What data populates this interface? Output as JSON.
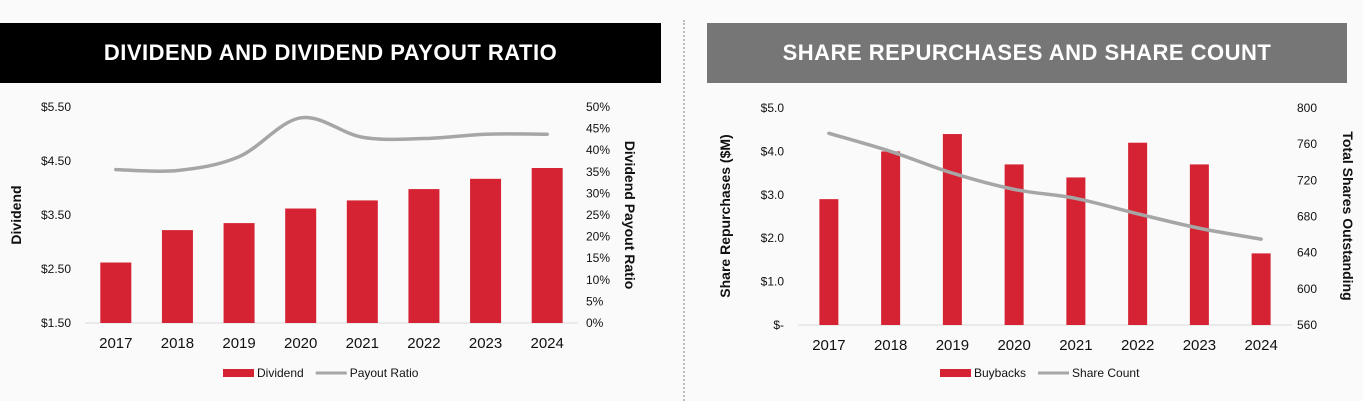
{
  "left": {
    "title": "DIVIDEND AND DIVIDEND PAYOUT RATIO",
    "chart_data": {
      "type": "bar",
      "categories": [
        "2017",
        "2018",
        "2019",
        "2020",
        "2021",
        "2022",
        "2023",
        "2024"
      ],
      "series": [
        {
          "name": "Dividend",
          "type": "bar",
          "axis": "left",
          "color": "#d62333",
          "values": [
            2.62,
            3.22,
            3.35,
            3.62,
            3.77,
            3.98,
            4.17,
            4.37
          ]
        },
        {
          "name": "Payout Ratio",
          "type": "line",
          "axis": "right",
          "color": "#a6a6a6",
          "values": [
            35.5,
            35.3,
            38.5,
            47.5,
            43.0,
            42.7,
            43.7,
            43.7
          ]
        }
      ],
      "ylabel": "Dividend",
      "ylabel_right": "Dividend Payout Ratio",
      "ylim": [
        1.5,
        5.5
      ],
      "ylim_right": [
        0,
        50
      ],
      "yticks": [
        "$5.50",
        "$4.50",
        "$3.50",
        "$2.50",
        "$1.50"
      ],
      "yticks_right": [
        "50%",
        "45%",
        "40%",
        "35%",
        "30%",
        "25%",
        "20%",
        "15%",
        "10%",
        "5%",
        "0%"
      ],
      "legend": "bottom",
      "grid": false
    }
  },
  "right": {
    "title": "SHARE REPURCHASES AND SHARE COUNT",
    "chart_data": {
      "type": "bar",
      "categories": [
        "2017",
        "2018",
        "2019",
        "2020",
        "2021",
        "2022",
        "2023",
        "2024"
      ],
      "series": [
        {
          "name": "Buybacks",
          "type": "bar",
          "axis": "left",
          "color": "#d62333",
          "values": [
            2.9,
            4.0,
            4.4,
            3.7,
            3.4,
            4.2,
            3.7,
            1.65
          ]
        },
        {
          "name": "Share Count",
          "type": "line",
          "axis": "right",
          "color": "#a6a6a6",
          "values": [
            772,
            752,
            728,
            710,
            700,
            683,
            667,
            655
          ]
        }
      ],
      "ylabel": "Share Repurchases ($M)",
      "ylabel_right": "Total Shares Outstanding",
      "ylim": [
        0,
        5
      ],
      "ylim_right": [
        560,
        800
      ],
      "yticks": [
        "$5.0",
        "$4.0",
        "$3.0",
        "$2.0",
        "$1.0",
        "$-"
      ],
      "yticks_right": [
        "800",
        "760",
        "720",
        "680",
        "640",
        "600",
        "560"
      ],
      "legend": "bottom",
      "grid": false
    }
  }
}
